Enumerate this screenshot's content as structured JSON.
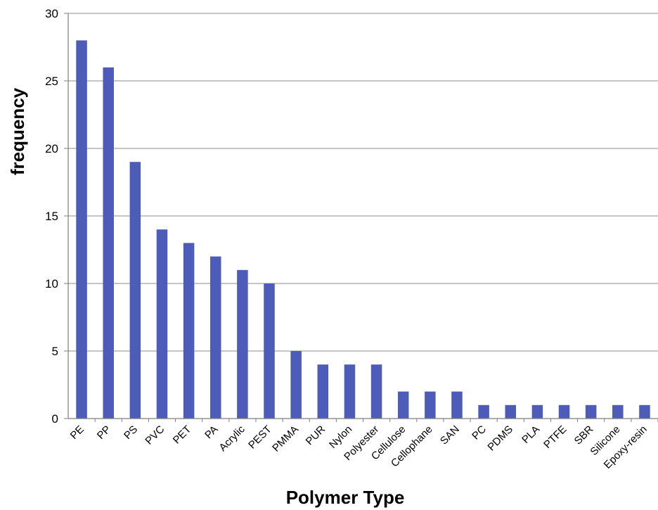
{
  "chart_data": {
    "type": "bar",
    "title": "",
    "xlabel": "Polymer Type",
    "ylabel": "frequency",
    "ylim": [
      0,
      30
    ],
    "yticks": [
      0,
      5,
      10,
      15,
      20,
      25,
      30
    ],
    "grid": true,
    "legend": "none",
    "bar_color": "#4c5cb8",
    "categories": [
      "PE",
      "PP",
      "PS",
      "PVC",
      "PET",
      "PA",
      "Acrylic",
      "PEST",
      "PMMA",
      "PUR",
      "Nylon",
      "Polyester",
      "Cellulose",
      "Cellophane",
      "SAN",
      "PC",
      "PDMS",
      "PLA",
      "PTFE",
      "SBR",
      "Silicone",
      "Epoxy-resin"
    ],
    "values": [
      28,
      26,
      19,
      14,
      13,
      12,
      11,
      10,
      5,
      4,
      4,
      4,
      2,
      2,
      2,
      1,
      1,
      1,
      1,
      1,
      1,
      1
    ]
  }
}
